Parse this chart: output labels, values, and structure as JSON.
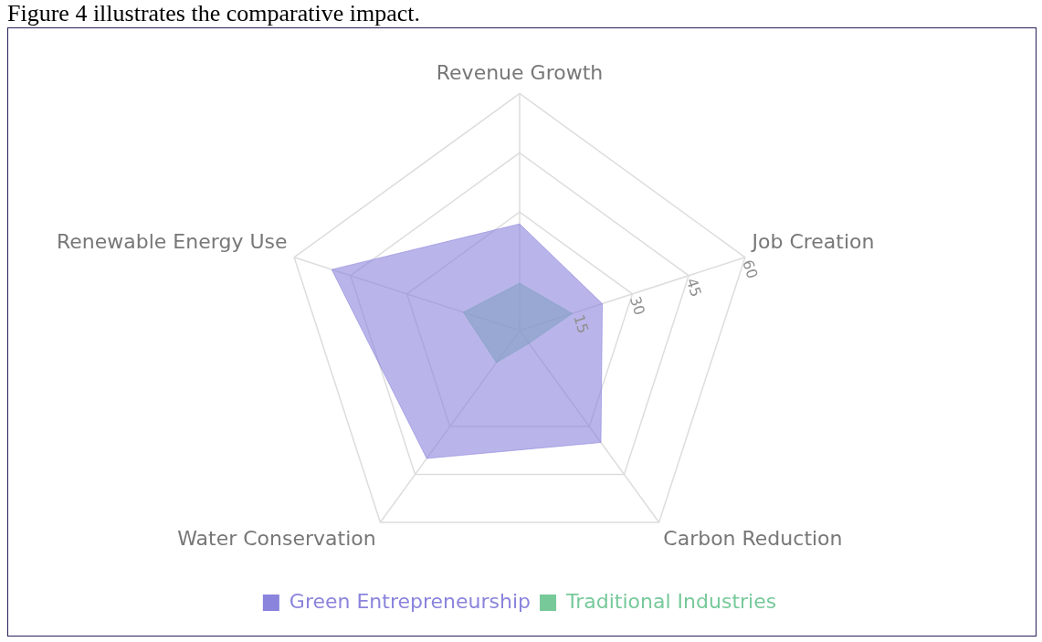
{
  "chart_data": {
    "type": "radar",
    "subtitle": "Figure 4 illustrates the comparative impact.",
    "categories": [
      "Revenue Growth",
      "Job Creation",
      "Carbon Reduction",
      "Water Conservation",
      "Renewable Energy Use"
    ],
    "series": [
      {
        "name": "Green Entrepreneurship",
        "color": "#8a84dc",
        "values": [
          27,
          22,
          35,
          40,
          50
        ]
      },
      {
        "name": "Traditional Industries",
        "color": "#77c99a",
        "values": [
          12,
          14,
          4,
          10,
          15
        ]
      }
    ],
    "ylim": [
      0,
      60
    ],
    "yticks": [
      15,
      30,
      45,
      60
    ],
    "grid": true,
    "legend": "bottom"
  }
}
